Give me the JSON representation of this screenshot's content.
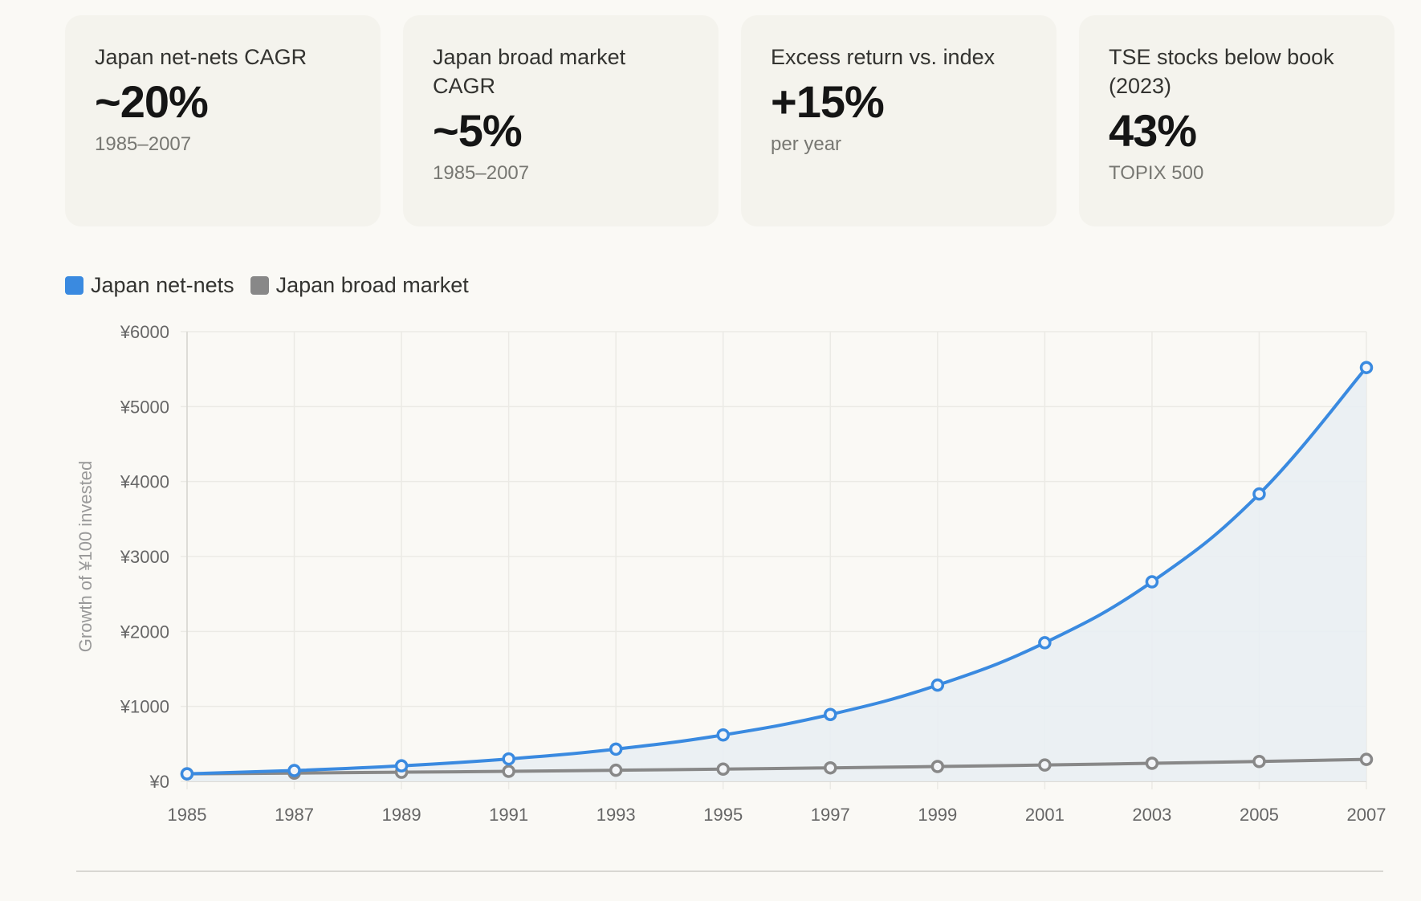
{
  "cards": [
    {
      "label": "Japan net-nets CAGR",
      "value": "~20%",
      "sub": "1985–2007"
    },
    {
      "label": "Japan broad market CAGR",
      "value": "~5%",
      "sub": "1985–2007"
    },
    {
      "label": "Excess return vs. index",
      "value": "+15%",
      "sub": "per year"
    },
    {
      "label": "TSE stocks below book (2023)",
      "value": "43%",
      "sub": "TOPIX 500"
    }
  ],
  "colors": {
    "netnets": "#3a8ae0",
    "broad": "#888888",
    "fill": "#e9eef3",
    "grid": "#ebeae5"
  },
  "chart_data": {
    "type": "line",
    "title": "",
    "xlabel": "",
    "ylabel": "Growth of ¥100 invested",
    "x": [
      "1985",
      "1987",
      "1989",
      "1991",
      "1993",
      "1995",
      "1997",
      "1999",
      "2001",
      "2003",
      "2005",
      "2007"
    ],
    "ylim": [
      0,
      6000
    ],
    "yticks": [
      0,
      1000,
      2000,
      3000,
      4000,
      5000,
      6000
    ],
    "ytick_labels": [
      "¥0",
      "¥1000",
      "¥2000",
      "¥3000",
      "¥4000",
      "¥5000",
      "¥6000"
    ],
    "grid": true,
    "legend_position": "top-left",
    "series": [
      {
        "name": "Japan net-nets",
        "color": "#3a8ae0",
        "filled": true,
        "values": [
          100,
          144,
          207,
          299,
          430,
          619,
          892,
          1284,
          1849,
          2662,
          3834,
          5521
        ]
      },
      {
        "name": "Japan broad market",
        "color": "#888888",
        "filled": false,
        "values": [
          100,
          110,
          122,
          134,
          148,
          163,
          180,
          198,
          218,
          241,
          265,
          293
        ]
      }
    ]
  }
}
